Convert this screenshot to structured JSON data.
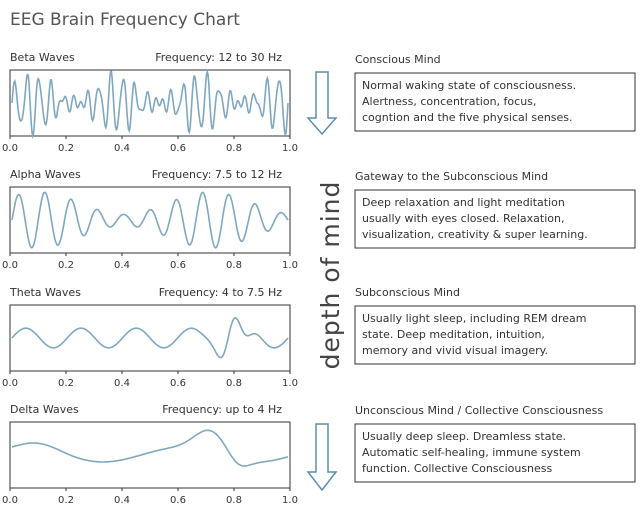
{
  "title": "EEG Brain Frequency Chart",
  "side_label": "depth of mind",
  "panels": [
    {
      "name": "Beta Waves",
      "frequency": "Frequency: 12 to 30 Hz",
      "ticks": [
        "0.0",
        "0.2",
        "0.4",
        "0.6",
        "0.8",
        "1.0"
      ],
      "heading": "Conscious Mind",
      "lines": [
        "Normal waking state of consciousness.",
        "Alertness, concentration, focus,",
        "cogntion and the five physical senses."
      ]
    },
    {
      "name": "Alpha Waves",
      "frequency": "Frequency: 7.5 to 12 Hz",
      "ticks": [
        "0.0",
        "0.2",
        "0.4",
        "0.6",
        "0.8",
        "1.0"
      ],
      "heading": "Gateway to the Subconscious Mind",
      "lines": [
        "Deep relaxation and light meditation",
        "usually with eyes closed. Relaxation,",
        "visualization, creativity & super learning."
      ]
    },
    {
      "name": "Theta Waves",
      "frequency": "Frequency: 4 to 7.5 Hz",
      "ticks": [
        "0.0",
        "0.2",
        "0.4",
        "0.6",
        "0.8",
        "1.0"
      ],
      "heading": "Subconscious Mind",
      "lines": [
        "Usually light sleep, including REM dream",
        "state. Deep meditation, intuition,",
        "memory and vivid visual imagery."
      ]
    },
    {
      "name": "Delta Waves",
      "frequency": "Frequency: up to 4 Hz",
      "ticks": [
        "0.0",
        "0.2",
        "0.4",
        "0.6",
        "0.8",
        "1.0"
      ],
      "heading": "Unconscious Mind / Collective Consciousness",
      "lines": [
        "Usually deep sleep. Dreamless state.",
        "Automatic self-healing, immune system",
        "function. Collective Consciousness"
      ]
    }
  ]
}
